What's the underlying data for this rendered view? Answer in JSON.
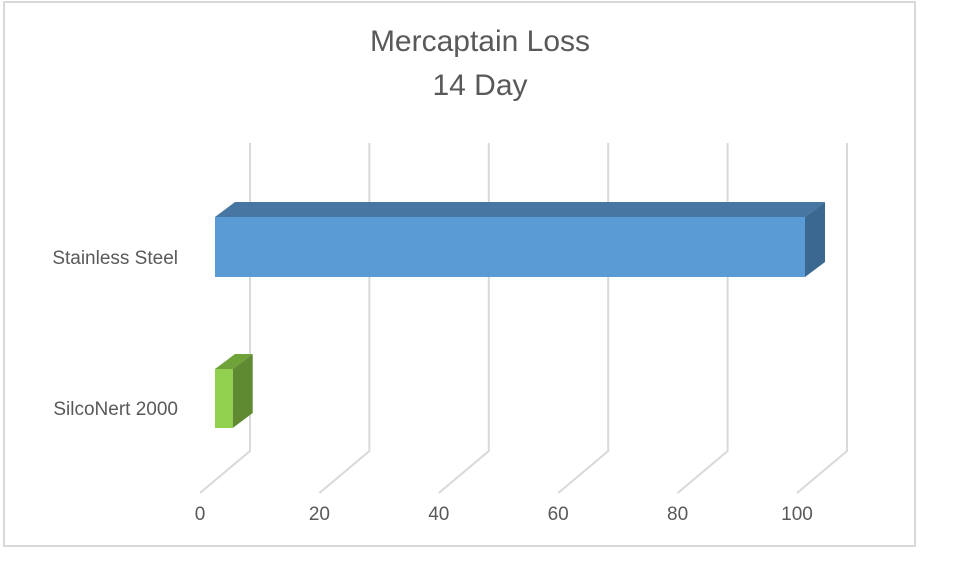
{
  "chart_data": {
    "type": "bar",
    "orientation": "horizontal",
    "style": "3d-clustered-bar",
    "title": "Mercaptain Loss",
    "subtitle": "14 Day",
    "title_lines": [
      "Mercaptain Loss",
      "14 Day"
    ],
    "categories": [
      "Stainless Steel",
      "SilcoNert 2000"
    ],
    "series": [
      {
        "name": "Mercaptain Loss 14 Day",
        "values": [
          100,
          3
        ],
        "colors": [
          "#5b9bd5",
          "#92d050"
        ]
      }
    ],
    "xlabel": "",
    "ylabel": "",
    "xlim": [
      0,
      100
    ],
    "x_ticks": [
      0,
      20,
      40,
      60,
      80,
      100
    ],
    "x_tick_labels": [
      "0",
      "20",
      "40",
      "60",
      "80",
      "100"
    ],
    "grid": true,
    "legend": "none"
  },
  "colors": {
    "stainless_front": "#5b9bd5",
    "stainless_top": "#4676a1",
    "stainless_side": "#3a6890",
    "silconert_front": "#92d050",
    "silconert_top": "#6fa33a",
    "silconert_side": "#5f8a32",
    "gridline": "#d9d9d9",
    "text": "#595959"
  }
}
